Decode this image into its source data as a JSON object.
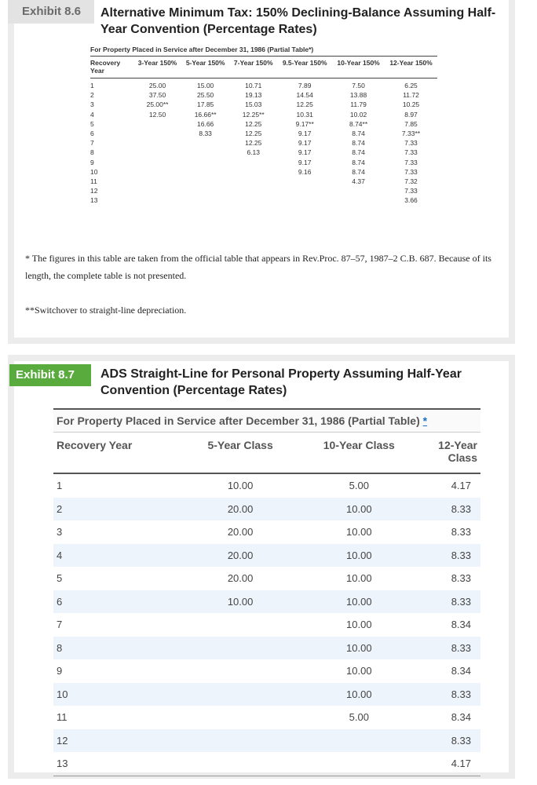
{
  "exhibit_86": {
    "label": "Exhibit 8.6",
    "title": "Alternative Minimum Tax: 150% Declining-Balance Assuming Half-Year Convention (Percentage Rates)",
    "caption": "For Property Placed in Service after December 31, 1986 (Partial Table*)",
    "headers": [
      "Recovery Year",
      "3-Year 150%",
      "5-Year 150%",
      "7-Year 150%",
      "9.5-Year 150%",
      "10-Year 150%",
      "12-Year 150%"
    ],
    "rows": [
      [
        "1",
        "25.00",
        "15.00",
        "10.71",
        "7.89",
        "7.50",
        "6.25"
      ],
      [
        "2",
        "37.50",
        "25.50",
        "19.13",
        "14.54",
        "13.88",
        "11.72"
      ],
      [
        "3",
        "25.00**",
        "17.85",
        "15.03",
        "12.25",
        "11.79",
        "10.25"
      ],
      [
        "4",
        "12.50",
        "16.66**",
        "12.25**",
        "10.31",
        "10.02",
        "8.97"
      ],
      [
        "5",
        null,
        "16.66",
        "12.25",
        "9.17**",
        "8.74**",
        "7.85"
      ],
      [
        "6",
        null,
        "8.33",
        "12.25",
        "9.17",
        "8.74",
        "7.33**"
      ],
      [
        "7",
        null,
        null,
        "12.25",
        "9.17",
        "8.74",
        "7.33"
      ],
      [
        "8",
        null,
        null,
        "6.13",
        "9.17",
        "8.74",
        "7.33"
      ],
      [
        "9",
        null,
        null,
        null,
        "9.17",
        "8.74",
        "7.33"
      ],
      [
        "10",
        null,
        null,
        null,
        "9.16",
        "8.74",
        "7.33"
      ],
      [
        "11",
        null,
        null,
        null,
        null,
        "4.37",
        "7.32"
      ],
      [
        "12",
        null,
        null,
        null,
        null,
        null,
        "7.33"
      ],
      [
        "13",
        null,
        null,
        null,
        null,
        null,
        "3.66"
      ]
    ],
    "footnotes": [
      "* The figures in this table are taken from the official table that appears in Rev.Proc. 87–57, 1987–2 C.B. 687. Because of its length, the complete table is not presented.",
      "**Switchover to straight-line depreciation."
    ]
  },
  "exhibit_87": {
    "label": "Exhibit 8.7",
    "title": "ADS Straight-Line for Personal Property Assuming Half-Year Convention (Percentage Rates)",
    "caption": "For Property Placed in Service after December 31, 1986 (Partial Table)",
    "caption_link": "*",
    "headers": [
      "Recovery Year",
      "5-Year Class",
      "10-Year Class",
      "12-Year Class"
    ],
    "rows": [
      [
        "1",
        "10.00",
        "5.00",
        "4.17"
      ],
      [
        "2",
        "20.00",
        "10.00",
        "8.33"
      ],
      [
        "3",
        "20.00",
        "10.00",
        "8.33"
      ],
      [
        "4",
        "20.00",
        "10.00",
        "8.33"
      ],
      [
        "5",
        "20.00",
        "10.00",
        "8.33"
      ],
      [
        "6",
        "10.00",
        "10.00",
        "8.33"
      ],
      [
        "7",
        null,
        "10.00",
        "8.34"
      ],
      [
        "8",
        null,
        "10.00",
        "8.33"
      ],
      [
        "9",
        null,
        "10.00",
        "8.34"
      ],
      [
        "10",
        null,
        "10.00",
        "8.33"
      ],
      [
        "11",
        null,
        "5.00",
        "8.34"
      ],
      [
        "12",
        null,
        null,
        "8.33"
      ],
      [
        "13",
        null,
        null,
        "4.17"
      ]
    ]
  }
}
